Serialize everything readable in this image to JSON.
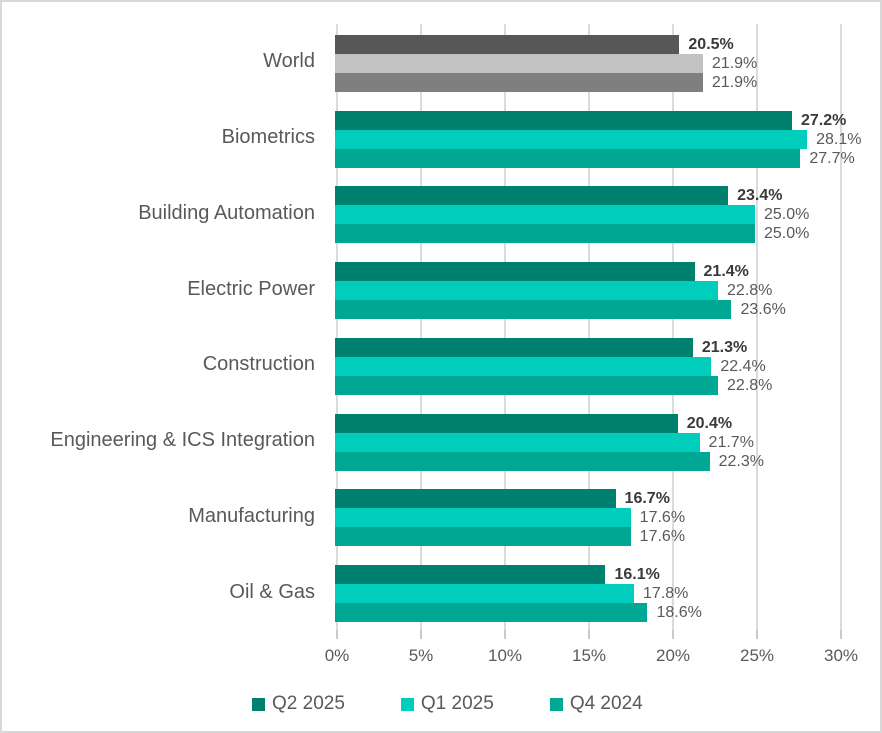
{
  "chart_data": {
    "type": "bar",
    "orientation": "horizontal",
    "title": "",
    "xlabel": "",
    "ylabel": "",
    "xlim": [
      0,
      30
    ],
    "x_ticks": [
      "0%",
      "5%",
      "10%",
      "15%",
      "20%",
      "25%",
      "30%"
    ],
    "grid": true,
    "legend_position": "bottom",
    "categories": [
      "World",
      "Biometrics",
      "Building Automation",
      "Electric Power",
      "Construction",
      "Engineering & ICS Integration",
      "Manufacturing",
      "Oil & Gas"
    ],
    "series": [
      {
        "name": "Q2 2025",
        "color": "#00806F",
        "world_color": "#575757",
        "emphasis": true,
        "values": [
          20.5,
          27.2,
          23.4,
          21.4,
          21.3,
          20.4,
          16.7,
          16.1
        ]
      },
      {
        "name": "Q1 2025",
        "color": "#00CDBC",
        "world_color": "#C2C2C2",
        "emphasis": false,
        "values": [
          21.9,
          28.1,
          25.0,
          22.8,
          22.4,
          21.7,
          17.6,
          17.8
        ]
      },
      {
        "name": "Q4 2024",
        "color": "#00A893",
        "world_color": "#7F7F7F",
        "emphasis": false,
        "values": [
          21.9,
          27.7,
          25.0,
          23.6,
          22.8,
          22.3,
          17.6,
          18.6
        ]
      }
    ],
    "value_label_suffix": "%"
  },
  "colors": {
    "grid": "#DBDBDB",
    "tick": "#C9C9C9",
    "category_label": "#595959",
    "axis_label": "#595959",
    "value_label": "#595959",
    "value_label_emphasis": "#3A3A3A",
    "border": "#D8D8D8",
    "background": "#FFFFFF"
  }
}
